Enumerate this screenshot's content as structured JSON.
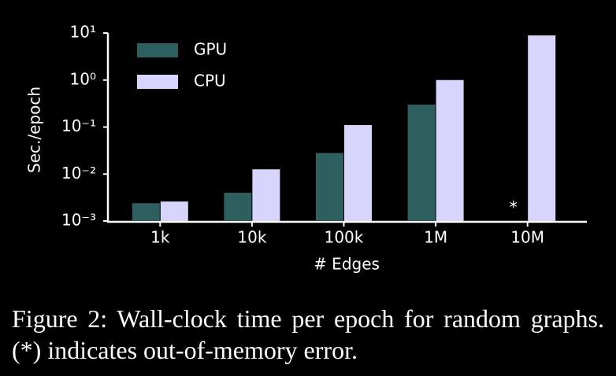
{
  "chart_data": {
    "type": "bar",
    "log_scale": true,
    "x_label": "# Edges",
    "y_label": "Sec./epoch",
    "categories": [
      "1k",
      "10k",
      "100k",
      "1M",
      "10M"
    ],
    "series": [
      {
        "name": "GPU",
        "color": "#2e5f5f",
        "values": [
          0.0024,
          0.004,
          0.028,
          0.3,
          null
        ]
      },
      {
        "name": "CPU",
        "color": "#d8d5fc",
        "values": [
          0.0026,
          0.0126,
          0.11,
          1.0,
          8.9
        ]
      }
    ],
    "ylim": [
      0.001,
      10
    ],
    "yticks": [
      {
        "value": 0.001,
        "label": "10⁻³"
      },
      {
        "value": 0.01,
        "label": "10⁻²"
      },
      {
        "value": 0.1,
        "label": "10⁻¹"
      },
      {
        "value": 1,
        "label": "10⁰"
      },
      {
        "value": 10,
        "label": "10¹"
      }
    ],
    "annotation": "*",
    "legend": "upper left",
    "caption": "Figure 2: Wall-clock time per epoch for random graphs. (*) indicates out-of-memory error."
  }
}
